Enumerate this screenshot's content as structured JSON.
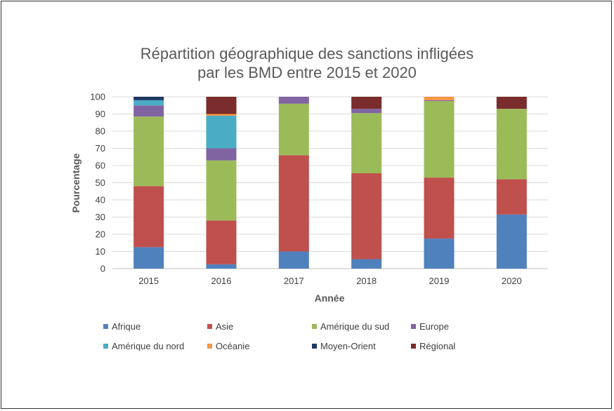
{
  "chart_data": {
    "type": "bar",
    "stacked": true,
    "title": "Répartition géographique des sanctions infligées par les BMD entre 2015 et 2020",
    "title_lines": [
      "Répartition géographique des sanctions infligées",
      "par les BMD entre 2015 et 2020"
    ],
    "xlabel": "Année",
    "ylabel": "Pourcentage",
    "ylim": [
      0,
      100
    ],
    "yticks": [
      0,
      10,
      20,
      30,
      40,
      50,
      60,
      70,
      80,
      90,
      100
    ],
    "grid": true,
    "legend_position": "bottom",
    "categories": [
      "2015",
      "2016",
      "2017",
      "2018",
      "2019",
      "2020"
    ],
    "series": [
      {
        "name": "Afrique",
        "color": "#4f81bd",
        "values": [
          12.5,
          2.5,
          10,
          5.5,
          17.5,
          31.5
        ]
      },
      {
        "name": "Asie",
        "color": "#c0504d",
        "values": [
          35.5,
          25.5,
          56,
          50,
          35.5,
          20.5
        ]
      },
      {
        "name": "Amérique du sud",
        "color": "#9bbb59",
        "values": [
          40.5,
          35,
          30,
          35,
          44.5,
          41
        ]
      },
      {
        "name": "Europe",
        "color": "#8064a2",
        "values": [
          6.5,
          7,
          4,
          2.5,
          0.5,
          0
        ]
      },
      {
        "name": "Amérique du nord",
        "color": "#4bacc6",
        "values": [
          3,
          19,
          0,
          0,
          0,
          0
        ]
      },
      {
        "name": "Océanie",
        "color": "#f79646",
        "values": [
          0,
          1,
          0,
          0,
          2,
          0
        ]
      },
      {
        "name": "Moyen-Orient",
        "color": "#1f3864",
        "values": [
          2,
          0,
          0,
          0,
          0,
          0
        ]
      },
      {
        "name": "Régional",
        "color": "#7b2c2c",
        "values": [
          0,
          10,
          0,
          7,
          0,
          7
        ]
      }
    ]
  }
}
